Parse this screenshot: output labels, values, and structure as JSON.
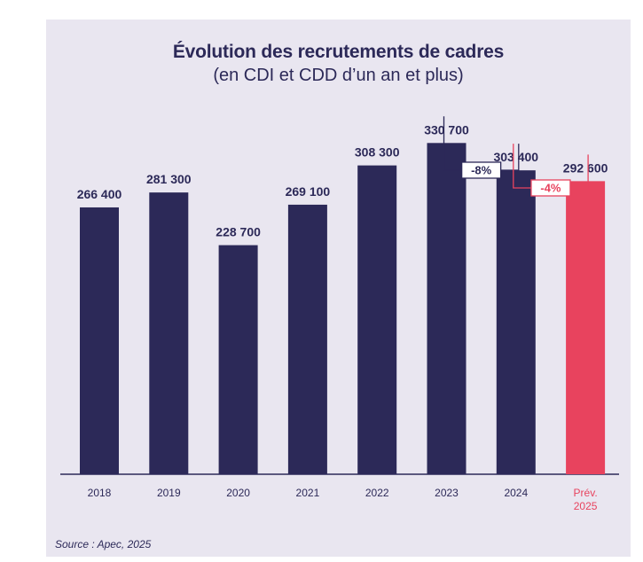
{
  "chart_data": {
    "type": "bar",
    "title": "Évolution des recrutements de cadres",
    "subtitle": "(en CDI et CDD d’un an et plus)",
    "categories": [
      "2018",
      "2019",
      "2020",
      "2021",
      "2022",
      "2023",
      "2024",
      "Prév. 2025"
    ],
    "category_lines": [
      [
        "2018"
      ],
      [
        "2019"
      ],
      [
        "2020"
      ],
      [
        "2021"
      ],
      [
        "2022"
      ],
      [
        "2023"
      ],
      [
        "2024"
      ],
      [
        "Prév.",
        "2025"
      ]
    ],
    "values": [
      266400,
      281300,
      228700,
      269100,
      308300,
      330700,
      303400,
      292600
    ],
    "value_labels": [
      "266 400",
      "281 300",
      "228 700",
      "269 100",
      "308 300",
      "330 700",
      "303 400",
      "292 600"
    ],
    "forecast_index": 7,
    "annotations": [
      {
        "label": "-8%",
        "from": 5,
        "to": 6,
        "color": "#2c2958"
      },
      {
        "label": "-4%",
        "from": 6,
        "to": 7,
        "color": "#e8435e"
      }
    ],
    "ylim": [
      0,
      340000
    ],
    "grid": false,
    "legend": "none",
    "colors": {
      "bar": "#2c2958",
      "forecast": "#e8435e",
      "background": "#e9e6f0",
      "text": "#2c2958"
    }
  },
  "source": "Source : Apec, 2025"
}
